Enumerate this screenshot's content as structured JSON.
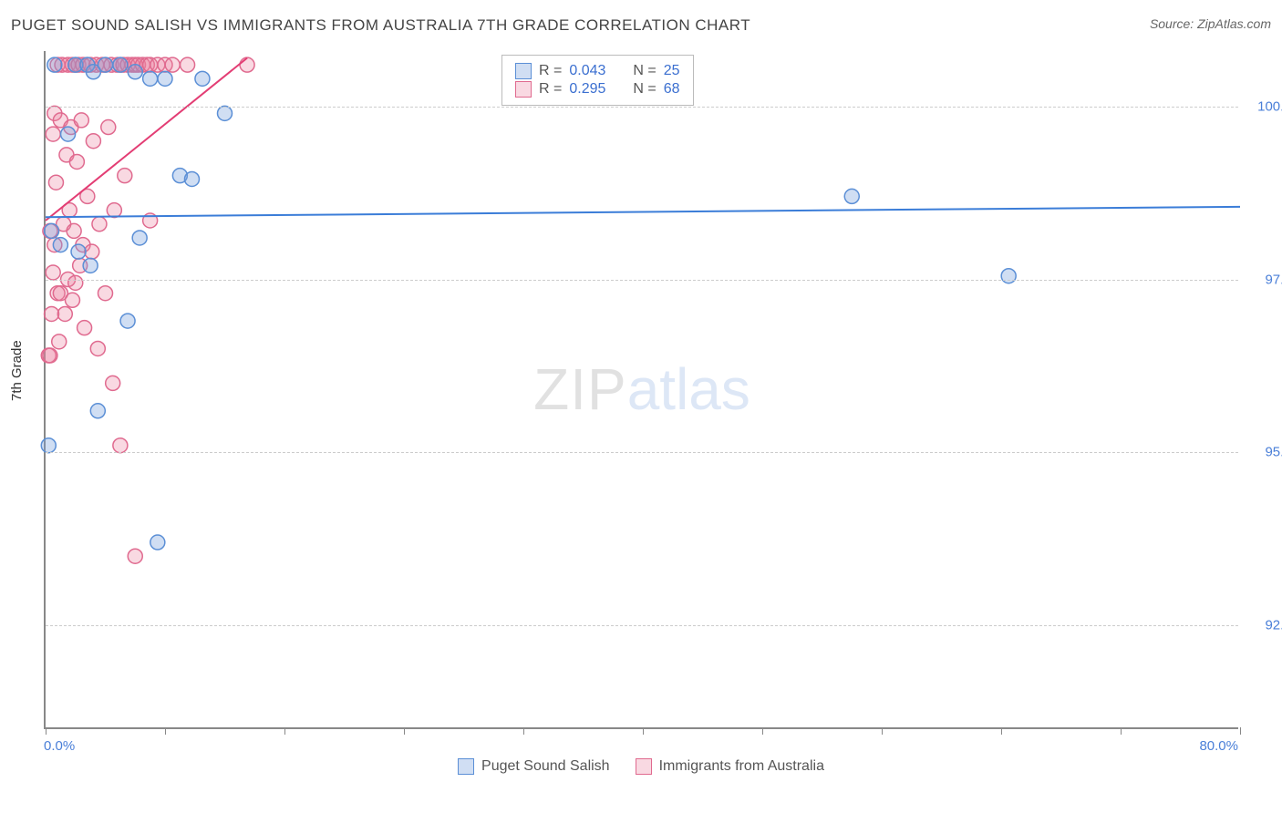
{
  "title": "PUGET SOUND SALISH VS IMMIGRANTS FROM AUSTRALIA 7TH GRADE CORRELATION CHART",
  "source_label": "Source:",
  "source_value": "ZipAtlas.com",
  "y_axis_title": "7th Grade",
  "watermark_a": "ZIP",
  "watermark_b": "atlas",
  "chart": {
    "type": "scatter",
    "xlim": [
      0,
      80
    ],
    "ylim": [
      91.0,
      100.8
    ],
    "x_min_label": "0.0%",
    "x_max_label": "80.0%",
    "x_ticks": [
      0,
      8,
      16,
      24,
      32,
      40,
      48,
      56,
      64,
      72,
      80
    ],
    "y_ticks": [
      {
        "v": 92.5,
        "label": "92.5%"
      },
      {
        "v": 95.0,
        "label": "95.0%"
      },
      {
        "v": 97.5,
        "label": "97.5%"
      },
      {
        "v": 100.0,
        "label": "100.0%"
      }
    ],
    "grid_color": "#cccccc",
    "background_color": "#ffffff",
    "marker_radius": 8,
    "marker_stroke_width": 1.5,
    "line_width": 2,
    "series": [
      {
        "name": "Puget Sound Salish",
        "color_fill": "rgba(120,160,220,0.35)",
        "color_stroke": "#5b8fd6",
        "line_color": "#3b7dd8",
        "R": "0.043",
        "N": "25",
        "trend": {
          "x1": 0,
          "y1": 98.4,
          "x2": 80,
          "y2": 98.55
        },
        "points": [
          {
            "x": 0.2,
            "y": 95.1
          },
          {
            "x": 0.4,
            "y": 98.2
          },
          {
            "x": 0.6,
            "y": 100.6
          },
          {
            "x": 1.0,
            "y": 98.0
          },
          {
            "x": 1.5,
            "y": 99.6
          },
          {
            "x": 2.0,
            "y": 100.6
          },
          {
            "x": 2.2,
            "y": 97.9
          },
          {
            "x": 2.8,
            "y": 100.6
          },
          {
            "x": 3.0,
            "y": 97.7
          },
          {
            "x": 3.2,
            "y": 100.5
          },
          {
            "x": 3.5,
            "y": 95.6
          },
          {
            "x": 4.0,
            "y": 100.6
          },
          {
            "x": 5.0,
            "y": 100.6
          },
          {
            "x": 5.5,
            "y": 96.9
          },
          {
            "x": 6.0,
            "y": 100.5
          },
          {
            "x": 6.3,
            "y": 98.1
          },
          {
            "x": 7.0,
            "y": 100.4
          },
          {
            "x": 7.5,
            "y": 93.7
          },
          {
            "x": 8.0,
            "y": 100.4
          },
          {
            "x": 9.0,
            "y": 99.0
          },
          {
            "x": 9.8,
            "y": 98.95
          },
          {
            "x": 10.5,
            "y": 100.4
          },
          {
            "x": 12.0,
            "y": 99.9
          },
          {
            "x": 54.0,
            "y": 98.7
          },
          {
            "x": 64.5,
            "y": 97.55
          }
        ]
      },
      {
        "name": "Immigrants from Australia",
        "color_fill": "rgba(235,130,160,0.30)",
        "color_stroke": "#e06a8f",
        "line_color": "#e33d74",
        "R": "0.295",
        "N": "68",
        "trend": {
          "x1": 0,
          "y1": 98.35,
          "x2": 13.5,
          "y2": 100.7
        },
        "points": [
          {
            "x": 0.2,
            "y": 96.4
          },
          {
            "x": 0.3,
            "y": 96.4
          },
          {
            "x": 0.3,
            "y": 98.2
          },
          {
            "x": 0.4,
            "y": 97.0
          },
          {
            "x": 0.5,
            "y": 99.6
          },
          {
            "x": 0.5,
            "y": 97.6
          },
          {
            "x": 0.6,
            "y": 99.9
          },
          {
            "x": 0.6,
            "y": 98.0
          },
          {
            "x": 0.7,
            "y": 98.9
          },
          {
            "x": 0.8,
            "y": 97.3
          },
          {
            "x": 0.8,
            "y": 100.6
          },
          {
            "x": 0.9,
            "y": 96.6
          },
          {
            "x": 1.0,
            "y": 99.8
          },
          {
            "x": 1.0,
            "y": 97.3
          },
          {
            "x": 1.1,
            "y": 100.6
          },
          {
            "x": 1.2,
            "y": 98.3
          },
          {
            "x": 1.3,
            "y": 97.0
          },
          {
            "x": 1.4,
            "y": 99.3
          },
          {
            "x": 1.5,
            "y": 100.6
          },
          {
            "x": 1.5,
            "y": 97.5
          },
          {
            "x": 1.6,
            "y": 98.5
          },
          {
            "x": 1.7,
            "y": 99.7
          },
          {
            "x": 1.8,
            "y": 100.6
          },
          {
            "x": 1.8,
            "y": 97.2
          },
          {
            "x": 1.9,
            "y": 98.2
          },
          {
            "x": 2.0,
            "y": 100.6
          },
          {
            "x": 2.0,
            "y": 97.45
          },
          {
            "x": 2.1,
            "y": 99.2
          },
          {
            "x": 2.2,
            "y": 100.6
          },
          {
            "x": 2.3,
            "y": 97.7
          },
          {
            "x": 2.4,
            "y": 99.8
          },
          {
            "x": 2.5,
            "y": 100.6
          },
          {
            "x": 2.5,
            "y": 98.0
          },
          {
            "x": 2.6,
            "y": 96.8
          },
          {
            "x": 2.8,
            "y": 100.6
          },
          {
            "x": 2.8,
            "y": 98.7
          },
          {
            "x": 3.0,
            "y": 100.6
          },
          {
            "x": 3.1,
            "y": 97.9
          },
          {
            "x": 3.2,
            "y": 99.5
          },
          {
            "x": 3.4,
            "y": 100.6
          },
          {
            "x": 3.5,
            "y": 96.5
          },
          {
            "x": 3.6,
            "y": 98.3
          },
          {
            "x": 3.8,
            "y": 100.6
          },
          {
            "x": 4.0,
            "y": 100.6
          },
          {
            "x": 4.0,
            "y": 97.3
          },
          {
            "x": 4.2,
            "y": 99.7
          },
          {
            "x": 4.4,
            "y": 100.6
          },
          {
            "x": 4.5,
            "y": 96.0
          },
          {
            "x": 4.6,
            "y": 98.5
          },
          {
            "x": 4.8,
            "y": 100.6
          },
          {
            "x": 5.0,
            "y": 100.6
          },
          {
            "x": 5.0,
            "y": 95.1
          },
          {
            "x": 5.2,
            "y": 100.6
          },
          {
            "x": 5.3,
            "y": 99.0
          },
          {
            "x": 5.5,
            "y": 100.6
          },
          {
            "x": 5.8,
            "y": 100.6
          },
          {
            "x": 6.0,
            "y": 100.6
          },
          {
            "x": 6.0,
            "y": 93.5
          },
          {
            "x": 6.2,
            "y": 100.6
          },
          {
            "x": 6.5,
            "y": 100.6
          },
          {
            "x": 6.8,
            "y": 100.6
          },
          {
            "x": 7.0,
            "y": 100.6
          },
          {
            "x": 7.0,
            "y": 98.35
          },
          {
            "x": 7.5,
            "y": 100.6
          },
          {
            "x": 8.0,
            "y": 100.6
          },
          {
            "x": 8.5,
            "y": 100.6
          },
          {
            "x": 9.5,
            "y": 100.6
          },
          {
            "x": 13.5,
            "y": 100.6
          }
        ]
      }
    ]
  },
  "legend_box": {
    "rows": [
      {
        "swatch_fill": "rgba(120,160,220,0.35)",
        "swatch_stroke": "#5b8fd6",
        "r_label": "R = ",
        "r_val": "0.043",
        "n_label": "N = ",
        "n_val": "25"
      },
      {
        "swatch_fill": "rgba(235,130,160,0.30)",
        "swatch_stroke": "#e06a8f",
        "r_label": "R = ",
        "r_val": "0.295",
        "n_label": "N = ",
        "n_val": "68"
      }
    ]
  },
  "bottom_legend": [
    {
      "swatch_fill": "rgba(120,160,220,0.35)",
      "swatch_stroke": "#5b8fd6",
      "label": "Puget Sound Salish"
    },
    {
      "swatch_fill": "rgba(235,130,160,0.30)",
      "swatch_stroke": "#e06a8f",
      "label": "Immigrants from Australia"
    }
  ]
}
